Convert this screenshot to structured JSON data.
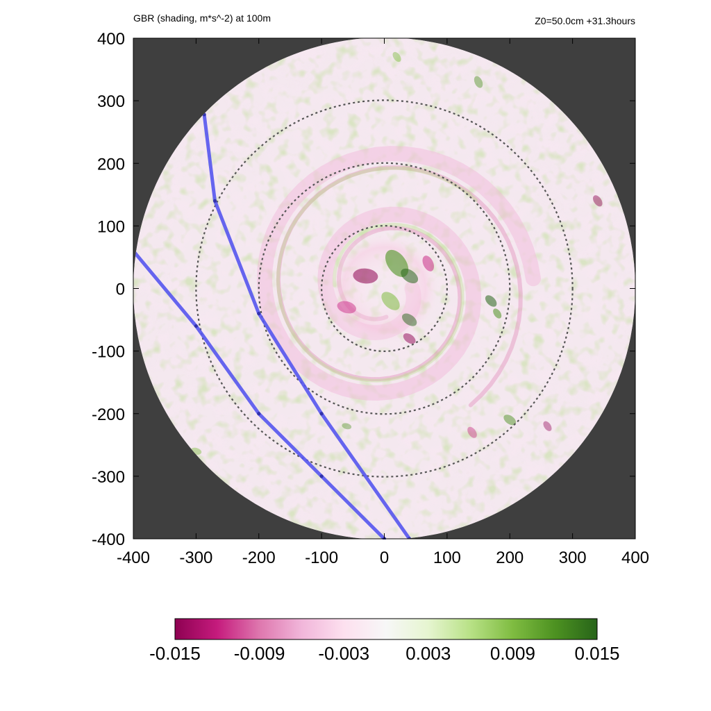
{
  "header": {
    "title": "GBR (shading, m*s^-2) at 100m",
    "info": "Z0=50.0cm  +31.3hours"
  },
  "colors": {
    "background_outside_domain": "#3f3f3f",
    "negative_extreme": "#8e0152",
    "positive_extreme": "#276419",
    "neutral": "#f7f7f7",
    "track_line": "#5555ee",
    "ring_line": "#555555"
  },
  "chart_data": {
    "type": "heatmap",
    "title": "GBR (shading, m*s^-2) at 100m",
    "xlim": [
      -400,
      400
    ],
    "ylim": [
      -400,
      400
    ],
    "x_ticks": [
      -400,
      -300,
      -200,
      -100,
      0,
      100,
      200,
      300,
      400
    ],
    "y_ticks": [
      -400,
      -300,
      -200,
      -100,
      0,
      100,
      200,
      300,
      400
    ],
    "x_tick_labels": [
      "-400",
      "-300",
      "-200",
      "-100",
      "0",
      "100",
      "200",
      "300",
      "400"
    ],
    "y_tick_labels": [
      "400",
      "300",
      "200",
      "100",
      "0",
      "-100",
      "-200",
      "-300",
      "-400"
    ],
    "domain_radius": 400,
    "range_rings": [
      100,
      200,
      300
    ],
    "tracks": [
      {
        "points": [
          [
            -287,
            278
          ],
          [
            -270,
            140
          ],
          [
            -200,
            -40
          ],
          [
            -100,
            -200
          ],
          [
            40,
            -400
          ]
        ]
      },
      {
        "points": [
          [
            -400,
            60
          ],
          [
            -300,
            -60
          ],
          [
            -200,
            -200
          ],
          [
            -100,
            -300
          ],
          [
            0,
            -400
          ]
        ]
      }
    ],
    "colorbar": {
      "min": -0.015,
      "max": 0.015,
      "ticks": [
        -0.015,
        -0.009,
        -0.003,
        0.003,
        0.009,
        0.015
      ],
      "tick_labels": [
        "-0.015",
        "-0.009",
        "-0.003",
        "0.003",
        "0.009",
        "0.015"
      ],
      "palette": [
        "#8e0152",
        "#c51b7d",
        "#de77ae",
        "#f1b6da",
        "#fde0ef",
        "#f7f7f7",
        "#e6f5d0",
        "#b8e186",
        "#7fbc41",
        "#4d9221",
        "#276419"
      ]
    }
  }
}
